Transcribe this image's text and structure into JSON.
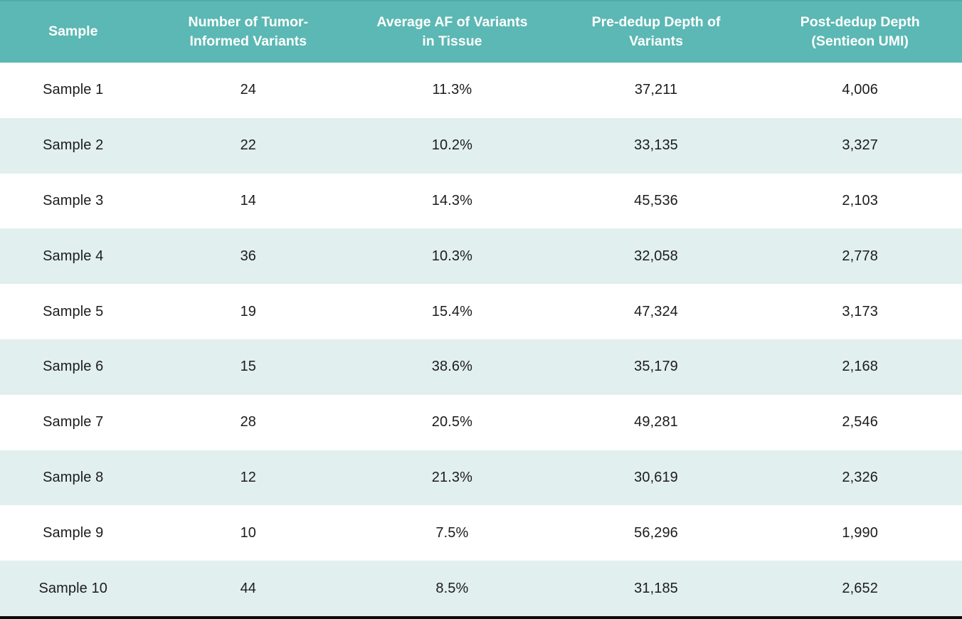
{
  "colors": {
    "header_bg": "#5bb8b4",
    "header_text": "#ffffff",
    "row_alt_bg": "#e1efee",
    "row_bg": "#ffffff",
    "body_text": "#1c1c1c",
    "bottom_border": "#0b0b0b"
  },
  "table": {
    "columns": [
      {
        "key": "sample",
        "label": "Sample"
      },
      {
        "key": "num_variants",
        "label": "Number of Tumor-Informed Variants"
      },
      {
        "key": "avg_af",
        "label": "Average AF of Variants in Tissue"
      },
      {
        "key": "pre_dedup",
        "label": "Pre-dedup Depth of Variants"
      },
      {
        "key": "post_dedup",
        "label": "Post-dedup Depth (Sentieon UMI)"
      }
    ],
    "rows": [
      {
        "sample": "Sample 1",
        "num_variants": "24",
        "avg_af": "11.3%",
        "pre_dedup": "37,211",
        "post_dedup": "4,006"
      },
      {
        "sample": "Sample 2",
        "num_variants": "22",
        "avg_af": "10.2%",
        "pre_dedup": "33,135",
        "post_dedup": "3,327"
      },
      {
        "sample": "Sample 3",
        "num_variants": "14",
        "avg_af": "14.3%",
        "pre_dedup": "45,536",
        "post_dedup": "2,103"
      },
      {
        "sample": "Sample 4",
        "num_variants": "36",
        "avg_af": "10.3%",
        "pre_dedup": "32,058",
        "post_dedup": "2,778"
      },
      {
        "sample": "Sample 5",
        "num_variants": "19",
        "avg_af": "15.4%",
        "pre_dedup": "47,324",
        "post_dedup": "3,173"
      },
      {
        "sample": "Sample 6",
        "num_variants": "15",
        "avg_af": "38.6%",
        "pre_dedup": "35,179",
        "post_dedup": "2,168"
      },
      {
        "sample": "Sample 7",
        "num_variants": "28",
        "avg_af": "20.5%",
        "pre_dedup": "49,281",
        "post_dedup": "2,546"
      },
      {
        "sample": "Sample 8",
        "num_variants": "12",
        "avg_af": "21.3%",
        "pre_dedup": "30,619",
        "post_dedup": "2,326"
      },
      {
        "sample": "Sample 9",
        "num_variants": "10",
        "avg_af": "7.5%",
        "pre_dedup": "56,296",
        "post_dedup": "1,990"
      },
      {
        "sample": "Sample 10",
        "num_variants": "44",
        "avg_af": "8.5%",
        "pre_dedup": "31,185",
        "post_dedup": "2,652"
      }
    ]
  },
  "chart_data": {
    "type": "table",
    "title": "",
    "columns": [
      "Sample",
      "Number of Tumor-Informed Variants",
      "Average AF of Variants in Tissue",
      "Pre-dedup Depth of Variants",
      "Post-dedup Depth (Sentieon UMI)"
    ],
    "categories": [
      "Sample 1",
      "Sample 2",
      "Sample 3",
      "Sample 4",
      "Sample 5",
      "Sample 6",
      "Sample 7",
      "Sample 8",
      "Sample 9",
      "Sample 10"
    ],
    "series": [
      {
        "name": "Number of Tumor-Informed Variants",
        "values": [
          24,
          22,
          14,
          36,
          19,
          15,
          28,
          12,
          10,
          44
        ]
      },
      {
        "name": "Average AF of Variants in Tissue (%)",
        "values": [
          11.3,
          10.2,
          14.3,
          10.3,
          15.4,
          38.6,
          20.5,
          21.3,
          7.5,
          8.5
        ]
      },
      {
        "name": "Pre-dedup Depth of Variants",
        "values": [
          37211,
          33135,
          45536,
          32058,
          47324,
          35179,
          49281,
          30619,
          56296,
          31185
        ]
      },
      {
        "name": "Post-dedup Depth (Sentieon UMI)",
        "values": [
          4006,
          3327,
          2103,
          2778,
          3173,
          2168,
          2546,
          2326,
          1990,
          2652
        ]
      }
    ],
    "legend_position": "none",
    "grid": false
  }
}
